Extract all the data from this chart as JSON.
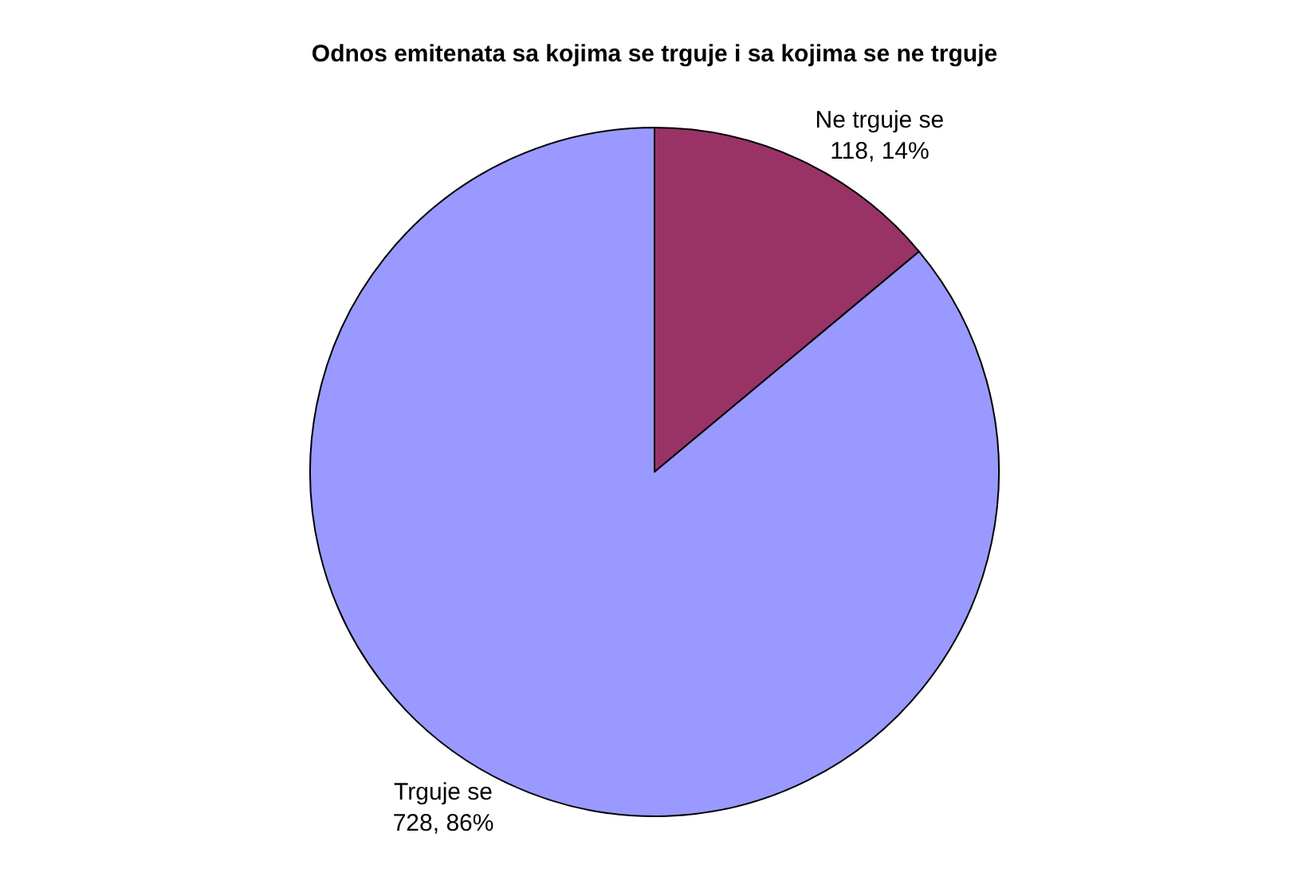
{
  "chart_data": {
    "type": "pie",
    "title": "Odnos emitenata sa kojima se trguje i sa kojima se ne trguje",
    "categories": [
      "Ne trguje se",
      "Trguje se"
    ],
    "values": [
      118,
      728
    ],
    "value_labels": [
      "118, 14%",
      "728, 86%"
    ],
    "colors": [
      "#993366",
      "#9999ff"
    ],
    "legend": false
  }
}
